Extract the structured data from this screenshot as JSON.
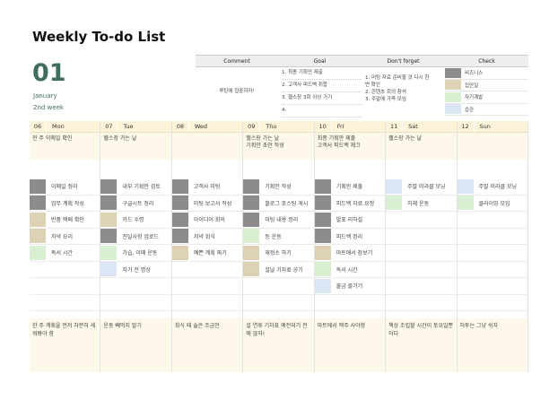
{
  "header": {
    "title": "Weekly  To-do  List",
    "day": "01",
    "month": "January",
    "week": "2nd week"
  },
  "summary": {
    "headers": [
      "Comment",
      "Goal",
      "Don't forget",
      "Check"
    ],
    "comment": "루틴에 집중하자!",
    "goals": [
      "1. 최종 기획안 제출",
      "2. 고객사 피드백 취합",
      "3. 헬스장 3회 이상 가기",
      "4."
    ],
    "dont_forget": [
      "1. 미팅 자료 준비할 것 다시 한",
      "번 확인",
      "2. 콘텐츠 회의 참석",
      "3. 주말에 가족 모임"
    ],
    "check": [
      {
        "label": "비즈니스",
        "color": "#8c8c8c"
      },
      {
        "label": "집안일",
        "color": "#ddd2b3"
      },
      {
        "label": "자기계발",
        "color": "#d9efd2"
      },
      {
        "label": "습관",
        "color": "#dbe6f4"
      }
    ]
  },
  "days": [
    {
      "num": "06",
      "name": "Mon",
      "memo": "전 주 이메일 확인",
      "tasks": [
        {
          "text": "이메일 정리",
          "color": "#8c8c8c"
        },
        {
          "text": "업무 계획 작성",
          "color": "#8c8c8c"
        },
        {
          "text": "반품 택배 확인",
          "color": "#ddd2b3"
        },
        {
          "text": "저녁 요리",
          "color": "#ddd2b3"
        },
        {
          "text": "독서 시간",
          "color": "#d9efd2"
        }
      ],
      "note": "한 주 계획을 먼저 차분히 세워봐야 함"
    },
    {
      "num": "07",
      "name": "Tue",
      "memo": "헬스장 가는 날",
      "tasks": [
        {
          "text": "내부 기획안 검토",
          "color": "#8c8c8c"
        },
        {
          "text": "구글시트 정리",
          "color": "#8c8c8c"
        },
        {
          "text": "카드 수령",
          "color": "#ddd2b3"
        },
        {
          "text": "전달사항 업로드",
          "color": "#8c8c8c"
        },
        {
          "text": "가습, 이메 운동",
          "color": "#d9efd2"
        },
        {
          "text": "자기 전 명상",
          "color": "#dbe6f4"
        }
      ],
      "note": "운동 빼먹지 말기"
    },
    {
      "num": "08",
      "name": "Wed",
      "memo": "",
      "tasks": [
        {
          "text": "",
          "color": ""
        },
        {
          "text": "",
          "color": ""
        },
        {
          "text": "",
          "color": ""
        },
        {
          "text": "",
          "color": ""
        },
        {
          "text": "",
          "color": ""
        }
      ],
      "tasks2": [
        {
          "text": "고객사 미팅",
          "color": "#8c8c8c"
        },
        {
          "text": "미팅 보고서 작성",
          "color": "#8c8c8c"
        },
        {
          "text": "아이디어 회의",
          "color": "#8c8c8c"
        },
        {
          "text": "저녁 회식",
          "color": "#8c8c8c"
        },
        {
          "text": "예쁜 계획 짜기",
          "color": "#ddd2b3"
        }
      ],
      "note": "회식 때 술은 조금만"
    },
    {
      "num": "09",
      "name": "Thu",
      "memo": "헬스장 가는 날\n기획안 초안 작성",
      "tasks": [
        {
          "text": "기획안 작성",
          "color": "#8c8c8c"
        },
        {
          "text": "블로그 포스팅 게시",
          "color": "#8c8c8c"
        },
        {
          "text": "미팅 내용 정리",
          "color": "#8c8c8c"
        },
        {
          "text": "등 운동",
          "color": "#d9efd2"
        },
        {
          "text": "재정소 하기",
          "color": "#ddd2b3"
        },
        {
          "text": "설날 기자료 공기",
          "color": "#ddd2b3"
        }
      ],
      "note": "설 연휴 기차표 예전되기 전에 끊자!"
    },
    {
      "num": "10",
      "name": "Fri",
      "memo": "최종 기획안 제출\n고객사 피드백 체크",
      "tasks": [
        {
          "text": "기획안 제출",
          "color": "#8c8c8c"
        },
        {
          "text": "피드백 자료 요청",
          "color": "#8c8c8c"
        },
        {
          "text": "발표 리허설",
          "color": "#8c8c8c"
        },
        {
          "text": "피드백 정리",
          "color": "#8c8c8c"
        },
        {
          "text": "마트에서 장보기",
          "color": "#ddd2b3"
        },
        {
          "text": "독서 시간",
          "color": "#d9efd2"
        },
        {
          "text": "불금 즐기기",
          "color": "#dbe6f4"
        }
      ],
      "note": "마트에서 맥주 사야함"
    },
    {
      "num": "11",
      "name": "Sat",
      "memo": "헬스장 가는 날",
      "tasks": [
        {
          "text": "주말 미라클 모닝",
          "color": "#dbe6f4"
        },
        {
          "text": "하체 운동",
          "color": "#d9efd2"
        }
      ],
      "note": "책상 조립할 시간이 토요일뿐이다"
    },
    {
      "num": "12",
      "name": "Sun",
      "memo": "",
      "tasks": [
        {
          "text": "주말 미라클 모닝",
          "color": "#dbe6f4"
        },
        {
          "text": "클라이밍 모임",
          "color": "#d9efd2"
        }
      ],
      "note": "허투는 그냥 쉬자"
    }
  ]
}
